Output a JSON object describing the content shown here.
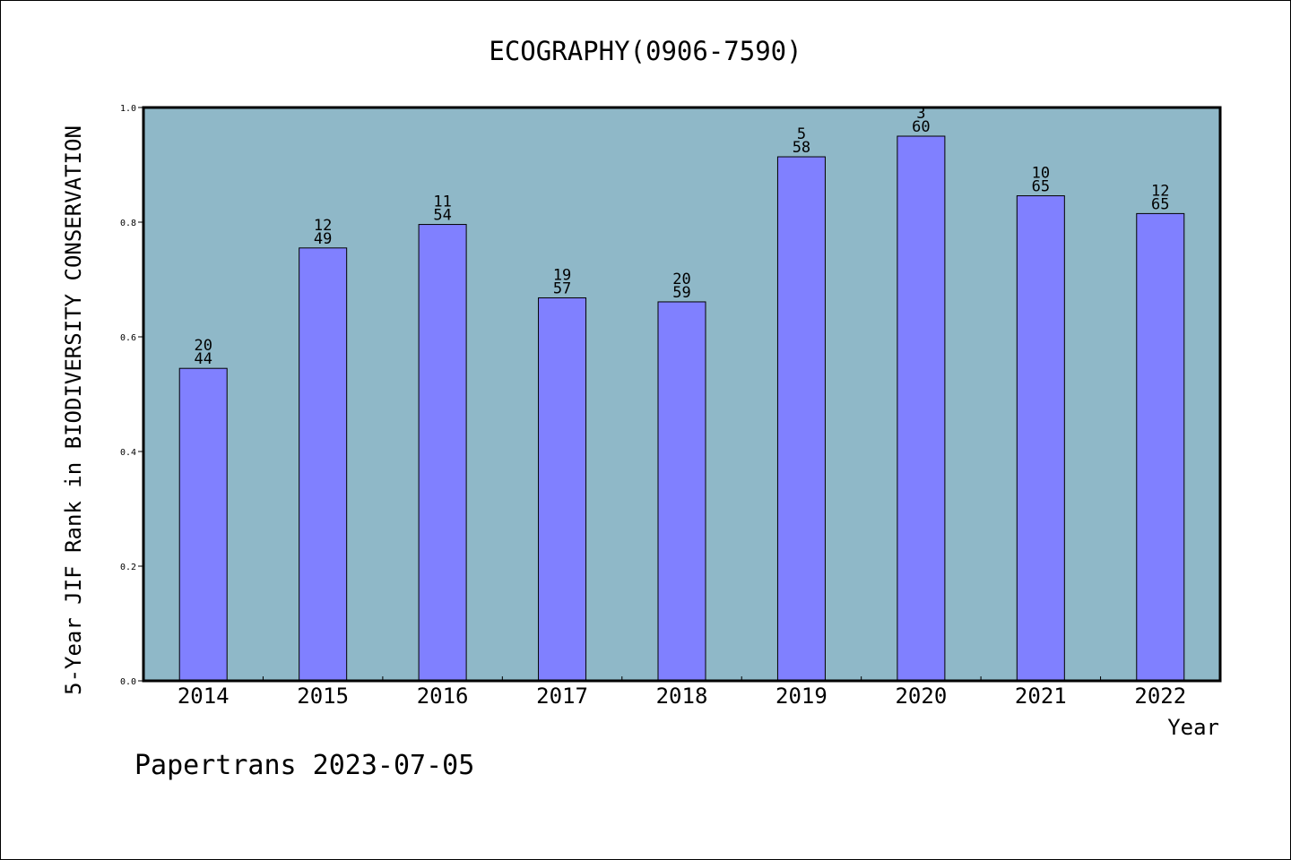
{
  "chart_data": {
    "type": "bar",
    "title": "ECOGRAPHY(0906-7590)",
    "xlabel": "Year",
    "ylabel": "5-Year JIF Rank in BIODIVERSITY CONSERVATION",
    "categories": [
      "2014",
      "2015",
      "2016",
      "2017",
      "2018",
      "2019",
      "2020",
      "2021",
      "2022"
    ],
    "values": [
      0.545,
      0.755,
      0.796,
      0.668,
      0.661,
      0.914,
      0.95,
      0.846,
      0.815
    ],
    "rank_labels": [
      {
        "rank": "20",
        "total": "44"
      },
      {
        "rank": "12",
        "total": "49"
      },
      {
        "rank": "11",
        "total": "54"
      },
      {
        "rank": "19",
        "total": "57"
      },
      {
        "rank": "20",
        "total": "59"
      },
      {
        "rank": "5",
        "total": "58"
      },
      {
        "rank": "3",
        "total": "60"
      },
      {
        "rank": "10",
        "total": "65"
      },
      {
        "rank": "12",
        "total": "65"
      }
    ],
    "ylim": [
      0,
      1
    ],
    "yticks": [
      "0.0",
      "0.2",
      "0.4",
      "0.6",
      "0.8",
      "1.0"
    ],
    "grid": false,
    "colors": {
      "plot_background": "#8fb8c8",
      "bar_fill": "#8080ff",
      "bar_stroke": "#000000"
    }
  },
  "footer": {
    "credit": "Papertrans 2023-07-05"
  }
}
